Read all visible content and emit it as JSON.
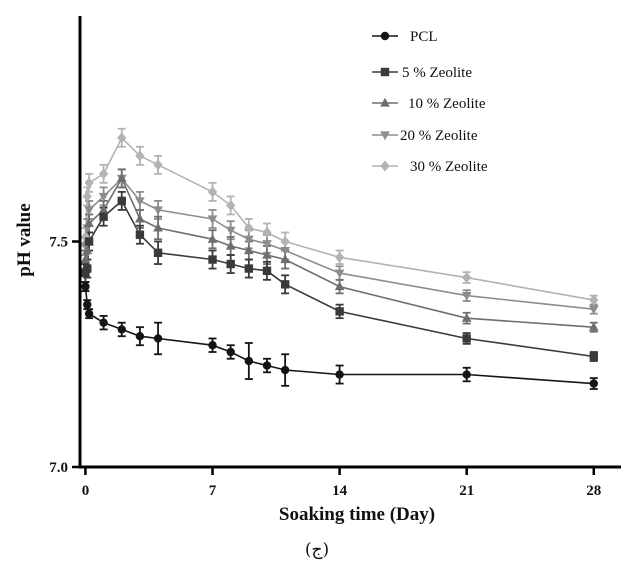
{
  "chart_data": {
    "type": "line",
    "title": "",
    "xlabel": "Soaking time (Day)",
    "ylabel": "pH value",
    "xlim": [
      -0.3,
      29.5
    ],
    "ylim": [
      7.0,
      8.0
    ],
    "x_ticks": [
      0,
      7,
      14,
      21,
      28
    ],
    "y_ticks": [
      7.0,
      7.5
    ],
    "y_tick_labels": [
      "7.0",
      "7.5"
    ],
    "legend_position": "top-right",
    "grid": false,
    "x": [
      0,
      0.1,
      0.2,
      1,
      2,
      3,
      4,
      7,
      8,
      9,
      10,
      11,
      14,
      21,
      28
    ],
    "series": [
      {
        "name": "PCL",
        "marker": "circle",
        "color": "#141414",
        "values": [
          7.4,
          7.36,
          7.34,
          7.32,
          7.305,
          7.29,
          7.285,
          7.27,
          7.255,
          7.235,
          7.225,
          7.215,
          7.205,
          7.205,
          7.185
        ],
        "errors": [
          0.01,
          0.01,
          0.01,
          0.015,
          0.015,
          0.02,
          0.035,
          0.015,
          0.015,
          0.04,
          0.015,
          0.035,
          0.02,
          0.015,
          0.012
        ]
      },
      {
        "name": "5 % Zeolite",
        "marker": "square",
        "color": "#3a3a3a",
        "values": [
          7.43,
          7.44,
          7.5,
          7.555,
          7.59,
          7.515,
          7.475,
          7.46,
          7.45,
          7.44,
          7.435,
          7.405,
          7.345,
          7.285,
          7.245
        ],
        "errors": [
          0.02,
          0.02,
          0.02,
          0.02,
          0.02,
          0.02,
          0.025,
          0.02,
          0.02,
          0.02,
          0.02,
          0.02,
          0.015,
          0.012,
          0.01
        ]
      },
      {
        "name": "10 % Zeolite",
        "marker": "triangle-up",
        "color": "#6e6e6e",
        "values": [
          7.46,
          7.48,
          7.54,
          7.57,
          7.64,
          7.55,
          7.53,
          7.505,
          7.49,
          7.48,
          7.47,
          7.46,
          7.4,
          7.33,
          7.31
        ],
        "errors": [
          0.02,
          0.02,
          0.02,
          0.02,
          0.02,
          0.02,
          0.025,
          0.02,
          0.02,
          0.02,
          0.02,
          0.02,
          0.015,
          0.012,
          0.01
        ]
      },
      {
        "name": "20 % Zeolite",
        "marker": "triangle-down",
        "color": "#8d8d8d",
        "values": [
          7.49,
          7.53,
          7.57,
          7.6,
          7.64,
          7.59,
          7.57,
          7.55,
          7.525,
          7.505,
          7.495,
          7.48,
          7.43,
          7.38,
          7.35
        ],
        "errors": [
          0.02,
          0.02,
          0.02,
          0.02,
          0.02,
          0.02,
          0.02,
          0.02,
          0.02,
          0.02,
          0.02,
          0.02,
          0.015,
          0.012,
          0.01
        ]
      },
      {
        "name": "30 % Zeolite",
        "marker": "diamond",
        "color": "#b3b3b3",
        "values": [
          7.51,
          7.6,
          7.63,
          7.65,
          7.73,
          7.69,
          7.67,
          7.61,
          7.58,
          7.53,
          7.52,
          7.5,
          7.465,
          7.42,
          7.37
        ],
        "errors": [
          0.02,
          0.02,
          0.02,
          0.02,
          0.02,
          0.02,
          0.02,
          0.02,
          0.02,
          0.02,
          0.02,
          0.02,
          0.015,
          0.012,
          0.01
        ]
      }
    ]
  },
  "caption": "(ج)"
}
